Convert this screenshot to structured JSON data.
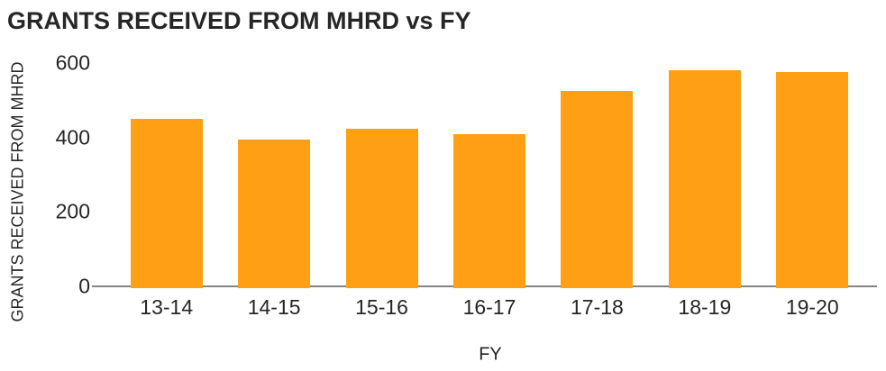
{
  "title": "GRANTS RECEIVED FROM MHRD vs FY",
  "chart_data": {
    "type": "bar",
    "title": "GRANTS RECEIVED FROM MHRD vs FY",
    "categories": [
      "13-14",
      "14-15",
      "15-16",
      "16-17",
      "17-18",
      "18-19",
      "19-20"
    ],
    "values": [
      449,
      394,
      423,
      408,
      525,
      581,
      576
    ],
    "xlabel": "FY",
    "ylabel": "GRANTS RECEIVED FROM MHRD",
    "ylim": [
      0,
      600
    ],
    "yticks": [
      0,
      200,
      400,
      600
    ],
    "bar_color": "#FFA014",
    "axis_line_color": "#848484",
    "text_color": "#262626",
    "background_color": "#FFFFFF",
    "grid": false,
    "legend": false
  }
}
